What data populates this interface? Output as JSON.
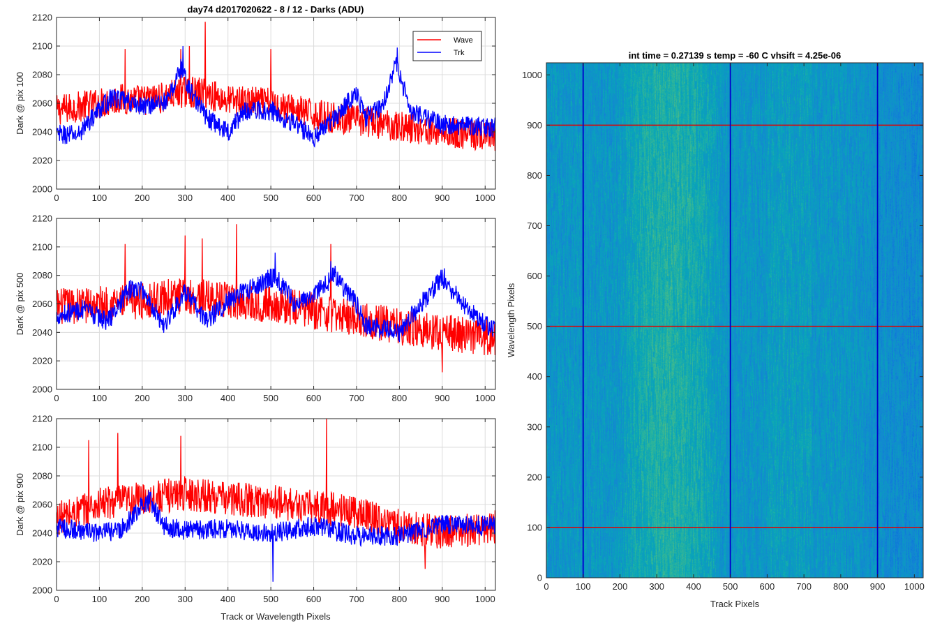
{
  "figure": {
    "main_title": "day74 d2017020622 - 8 / 12 - Darks (ADU)"
  },
  "chart_data": [
    {
      "type": "line",
      "title": "day74 d2017020622 - 8 / 12 - Darks (ADU)",
      "xlabel": "",
      "ylabel": "Dark @ pix 100",
      "xlim": [
        0,
        1024
      ],
      "ylim": [
        2000,
        2120
      ],
      "xticks": [
        0,
        100,
        200,
        300,
        400,
        500,
        600,
        700,
        800,
        900,
        1000
      ],
      "yticks": [
        2000,
        2020,
        2040,
        2060,
        2080,
        2100,
        2120
      ],
      "grid": true,
      "legend": {
        "placement": "top-right",
        "entries": [
          "Wave",
          "Trk"
        ]
      },
      "series": [
        {
          "name": "Wave",
          "color": "#ff0000",
          "noise": 11,
          "baseline": [
            [
              0,
              2055
            ],
            [
              100,
              2060
            ],
            [
              150,
              2063
            ],
            [
              200,
              2062
            ],
            [
              250,
              2064
            ],
            [
              300,
              2068
            ],
            [
              350,
              2067
            ],
            [
              400,
              2062
            ],
            [
              500,
              2060
            ],
            [
              600,
              2052
            ],
            [
              700,
              2048
            ],
            [
              800,
              2044
            ],
            [
              900,
              2040
            ],
            [
              1024,
              2036
            ]
          ],
          "peaks": [
            [
              347,
              2117
            ],
            [
              290,
              2098
            ],
            [
              160,
              2098
            ],
            [
              500,
              2098
            ],
            [
              310,
              2100
            ]
          ]
        },
        {
          "name": "Trk",
          "color": "#0000ff",
          "noise": 7,
          "baseline": [
            [
              0,
              2038
            ],
            [
              50,
              2038
            ],
            [
              100,
              2056
            ],
            [
              130,
              2064
            ],
            [
              200,
              2058
            ],
            [
              260,
              2062
            ],
            [
              290,
              2085
            ],
            [
              310,
              2070
            ],
            [
              350,
              2050
            ],
            [
              400,
              2040
            ],
            [
              440,
              2055
            ],
            [
              500,
              2055
            ],
            [
              560,
              2045
            ],
            [
              600,
              2036
            ],
            [
              650,
              2050
            ],
            [
              700,
              2068
            ],
            [
              720,
              2050
            ],
            [
              760,
              2058
            ],
            [
              790,
              2088
            ],
            [
              810,
              2070
            ],
            [
              830,
              2054
            ],
            [
              900,
              2045
            ],
            [
              1024,
              2043
            ]
          ],
          "peaks": [
            [
              795,
              2099
            ],
            [
              295,
              2100
            ]
          ]
        }
      ]
    },
    {
      "type": "line",
      "title": "",
      "xlabel": "",
      "ylabel": "Dark @ pix 500",
      "xlim": [
        0,
        1024
      ],
      "ylim": [
        2000,
        2120
      ],
      "xticks": [
        0,
        100,
        200,
        300,
        400,
        500,
        600,
        700,
        800,
        900,
        1000
      ],
      "yticks": [
        2000,
        2020,
        2040,
        2060,
        2080,
        2100,
        2120
      ],
      "grid": true,
      "series": [
        {
          "name": "Wave",
          "color": "#ff0000",
          "noise": 13,
          "baseline": [
            [
              0,
              2058
            ],
            [
              100,
              2060
            ],
            [
              200,
              2062
            ],
            [
              300,
              2066
            ],
            [
              400,
              2062
            ],
            [
              500,
              2060
            ],
            [
              600,
              2055
            ],
            [
              700,
              2050
            ],
            [
              800,
              2044
            ],
            [
              900,
              2040
            ],
            [
              1024,
              2036
            ]
          ],
          "peaks": [
            [
              420,
              2116
            ],
            [
              300,
              2108
            ],
            [
              340,
              2106
            ],
            [
              160,
              2102
            ],
            [
              640,
              2102
            ],
            [
              900,
              2012
            ]
          ]
        },
        {
          "name": "Trk",
          "color": "#0000ff",
          "noise": 7,
          "baseline": [
            [
              0,
              2052
            ],
            [
              60,
              2056
            ],
            [
              120,
              2048
            ],
            [
              170,
              2070
            ],
            [
              200,
              2070
            ],
            [
              250,
              2045
            ],
            [
              300,
              2068
            ],
            [
              350,
              2048
            ],
            [
              400,
              2062
            ],
            [
              510,
              2080
            ],
            [
              560,
              2058
            ],
            [
              650,
              2080
            ],
            [
              700,
              2060
            ],
            [
              720,
              2045
            ],
            [
              800,
              2040
            ],
            [
              850,
              2060
            ],
            [
              900,
              2078
            ],
            [
              950,
              2060
            ],
            [
              1024,
              2040
            ]
          ],
          "peaks": [
            [
              510,
              2096
            ],
            [
              640,
              2090
            ],
            [
              905,
              2085
            ]
          ]
        }
      ]
    },
    {
      "type": "line",
      "title": "",
      "xlabel": "Track or Wavelength Pixels",
      "ylabel": "Dark @ pix 900",
      "xlim": [
        0,
        1024
      ],
      "ylim": [
        2000,
        2120
      ],
      "xticks": [
        0,
        100,
        200,
        300,
        400,
        500,
        600,
        700,
        800,
        900,
        1000
      ],
      "yticks": [
        2000,
        2020,
        2040,
        2060,
        2080,
        2100,
        2120
      ],
      "grid": true,
      "series": [
        {
          "name": "Wave",
          "color": "#ff0000",
          "noise": 12,
          "baseline": [
            [
              0,
              2050
            ],
            [
              100,
              2060
            ],
            [
              200,
              2064
            ],
            [
              300,
              2068
            ],
            [
              400,
              2064
            ],
            [
              500,
              2062
            ],
            [
              600,
              2058
            ],
            [
              700,
              2055
            ],
            [
              800,
              2045
            ],
            [
              900,
              2040
            ],
            [
              1024,
              2044
            ]
          ],
          "peaks": [
            [
              630,
              2120
            ],
            [
              143,
              2110
            ],
            [
              75,
              2105
            ],
            [
              290,
              2108
            ],
            [
              860,
              2015
            ]
          ]
        },
        {
          "name": "Trk",
          "color": "#0000ff",
          "noise": 7,
          "baseline": [
            [
              0,
              2044
            ],
            [
              100,
              2040
            ],
            [
              150,
              2042
            ],
            [
              200,
              2060
            ],
            [
              220,
              2062
            ],
            [
              250,
              2045
            ],
            [
              300,
              2042
            ],
            [
              400,
              2043
            ],
            [
              500,
              2040
            ],
            [
              600,
              2045
            ],
            [
              700,
              2038
            ],
            [
              800,
              2038
            ],
            [
              900,
              2046
            ],
            [
              1024,
              2045
            ]
          ],
          "peaks": [
            [
              215,
              2070
            ],
            [
              505,
              2006
            ]
          ]
        }
      ]
    },
    {
      "type": "heatmap",
      "title": "int time = 0.27139 s    temp = -60 C    vhsift = 4.25e-06",
      "xlabel": "Track Pixels",
      "ylabel": "Wavelength Pixels",
      "xlim": [
        0,
        1024
      ],
      "ylim": [
        0,
        1024
      ],
      "xticks": [
        0,
        100,
        200,
        300,
        400,
        500,
        600,
        700,
        800,
        900,
        1000
      ],
      "yticks": [
        0,
        100,
        200,
        300,
        400,
        500,
        600,
        700,
        800,
        900,
        1000
      ],
      "colormap": "parula",
      "bright_band": [
        250,
        420
      ],
      "vertical_lines": {
        "color": "#0000cc",
        "x": [
          100,
          500,
          900
        ]
      },
      "horizontal_lines": {
        "color": "#e00000",
        "y": [
          100,
          500,
          900
        ]
      }
    }
  ]
}
